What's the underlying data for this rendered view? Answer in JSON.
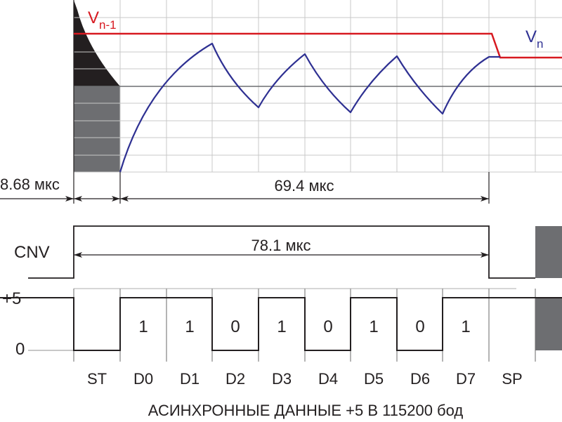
{
  "colors": {
    "reference_line": "#d71920",
    "signal_curve": "#2e3092",
    "axis": "#231f20",
    "grid": "#c8c8c8",
    "discharge_dark": "#231f20",
    "gray_block": "#6d6e71"
  },
  "labels": {
    "v_prev_main": "V",
    "v_prev_sub": "n-1",
    "v_next_main": "V",
    "v_next_sub": "n",
    "time_start": "8.68 мкс",
    "time_data": "69.4 мкс",
    "time_cnv": "78.1 мкс",
    "cnv": "CNV",
    "plus5": "+5",
    "zero": "0",
    "caption": "АСИНХРОННЫЕ ДАННЫЕ +5 В 115200 бод"
  },
  "bits": [
    {
      "name": "ST",
      "value": ""
    },
    {
      "name": "D0",
      "value": "1"
    },
    {
      "name": "D1",
      "value": "1"
    },
    {
      "name": "D2",
      "value": "0"
    },
    {
      "name": "D3",
      "value": "1"
    },
    {
      "name": "D4",
      "value": "0"
    },
    {
      "name": "D5",
      "value": "1"
    },
    {
      "name": "D6",
      "value": "0"
    },
    {
      "name": "D7",
      "value": "1"
    },
    {
      "name": "SP",
      "value": ""
    }
  ]
}
